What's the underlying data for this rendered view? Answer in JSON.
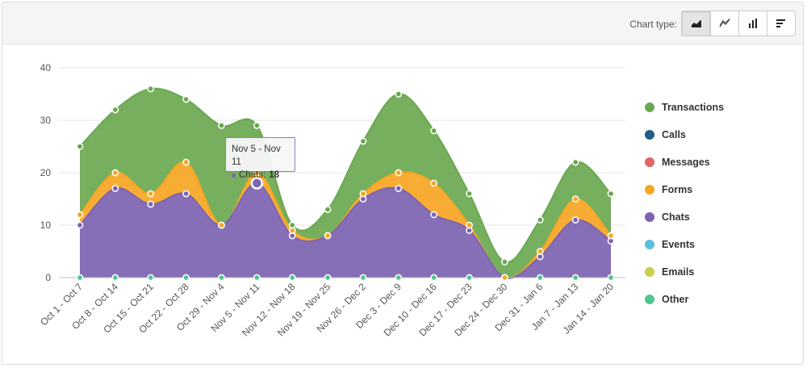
{
  "toolbar": {
    "label": "Chart type:",
    "buttons": [
      {
        "name": "area-chart-icon",
        "active": true
      },
      {
        "name": "line-chart-icon",
        "active": false
      },
      {
        "name": "bar-chart-icon",
        "active": false
      },
      {
        "name": "horizontal-bar-chart-icon",
        "active": false
      }
    ]
  },
  "tooltip": {
    "title": "Nov 5 - Nov 11",
    "series": "Chats",
    "value": "18"
  },
  "chart_data": {
    "type": "area",
    "stacked": true,
    "ylim": [
      0,
      40
    ],
    "yticks": [
      0,
      10,
      20,
      30,
      40
    ],
    "grid": true,
    "legend_position": "right",
    "categories": [
      "Oct 1 - Oct 7",
      "Oct 8 - Oct 14",
      "Oct 15 - Oct 21",
      "Oct 22 - Oct 28",
      "Oct 29 - Nov 4",
      "Nov 5 - Nov 11",
      "Nov 12 - Nov 18",
      "Nov 19 - Nov 25",
      "Nov 26 - Dec 2",
      "Dec 3 - Dec 9",
      "Dec 10 - Dec 16",
      "Dec 17 - Dec 23",
      "Dec 24 - Dec 30",
      "Dec 31 - Jan 6",
      "Jan 7 - Jan 13",
      "Jan 14 - Jan 20"
    ],
    "series": [
      {
        "name": "Transactions",
        "color": "#6aa84f",
        "values": [
          13,
          12,
          20,
          12,
          19,
          9,
          1,
          5,
          10,
          15,
          10,
          6,
          3,
          6,
          7,
          8
        ]
      },
      {
        "name": "Calls",
        "color": "#1f5f8b",
        "values": [
          0,
          0,
          0,
          0,
          0,
          0,
          0,
          0,
          0,
          0,
          0,
          0,
          0,
          0,
          0,
          0
        ]
      },
      {
        "name": "Messages",
        "color": "#e06666",
        "values": [
          0,
          0,
          0,
          0,
          0,
          0,
          0,
          0,
          0,
          0,
          0,
          0,
          0,
          0,
          0,
          0
        ]
      },
      {
        "name": "Forms",
        "color": "#f6a623",
        "values": [
          2,
          3,
          2,
          6,
          0,
          2,
          1,
          0,
          1,
          3,
          6,
          1,
          0,
          1,
          4,
          1
        ]
      },
      {
        "name": "Chats",
        "color": "#7d63b1",
        "values": [
          10,
          17,
          14,
          16,
          10,
          18,
          8,
          8,
          15,
          17,
          12,
          9,
          0,
          4,
          11,
          7
        ]
      },
      {
        "name": "Events",
        "color": "#5bc0de",
        "values": [
          0,
          0,
          0,
          0,
          0,
          0,
          0,
          0,
          0,
          0,
          0,
          0,
          0,
          0,
          0,
          0
        ]
      },
      {
        "name": "Emails",
        "color": "#c9cf4f",
        "values": [
          0,
          0,
          0,
          0,
          0,
          0,
          0,
          0,
          0,
          0,
          0,
          0,
          0,
          0,
          0,
          0
        ]
      },
      {
        "name": "Other",
        "color": "#4fc690",
        "values": [
          0,
          0,
          0,
          0,
          0,
          0,
          0,
          0,
          0,
          0,
          0,
          0,
          0,
          0,
          0,
          0
        ]
      }
    ]
  }
}
